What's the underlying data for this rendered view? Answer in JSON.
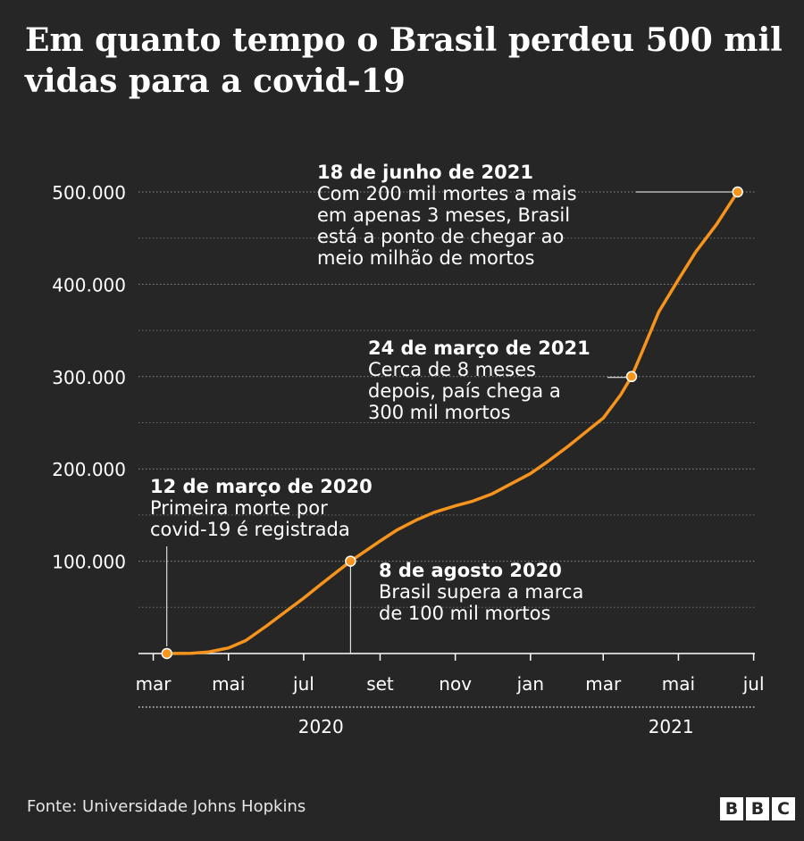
{
  "title": "Em quanto tempo o Brasil perdeu 500 mil vidas para a covid-19",
  "source": "Fonte: Universidade Johns Hopkins",
  "logo_letters": [
    "B",
    "B",
    "C"
  ],
  "colors": {
    "background": "#262626",
    "line": "#f7941d",
    "text": "#ffffff",
    "grid": "#8c8c8c"
  },
  "chart_data": {
    "type": "line",
    "title": "Em quanto tempo o Brasil perdeu 500 mil vidas para a covid-19",
    "xlabel": "",
    "ylabel": "",
    "ylim": [
      0,
      500000
    ],
    "xlim": [
      "2020-02-18",
      "2021-07-02"
    ],
    "y_ticks": [
      100000,
      200000,
      300000,
      400000,
      500000
    ],
    "y_tick_labels": [
      "100.000",
      "200.000",
      "300.000",
      "400.000",
      "500.000"
    ],
    "x_ticks": [
      {
        "date": "2020-03-01",
        "label": "mar"
      },
      {
        "date": "2020-05-01",
        "label": "mai"
      },
      {
        "date": "2020-07-01",
        "label": "jul"
      },
      {
        "date": "2020-09-01",
        "label": "set"
      },
      {
        "date": "2020-11-01",
        "label": "nov"
      },
      {
        "date": "2021-01-01",
        "label": "jan"
      },
      {
        "date": "2021-03-01",
        "label": "mar"
      },
      {
        "date": "2021-05-01",
        "label": "mai"
      },
      {
        "date": "2021-07-01",
        "label": "jul"
      }
    ],
    "years": [
      {
        "label": "2020",
        "center_date": "2020-07-15"
      },
      {
        "label": "2021",
        "center_date": "2021-04-25"
      }
    ],
    "grid": true,
    "series": [
      {
        "points": [
          [
            "2020-03-12",
            1
          ],
          [
            "2020-04-01",
            200
          ],
          [
            "2020-04-15",
            1700
          ],
          [
            "2020-05-01",
            6000
          ],
          [
            "2020-05-15",
            14000
          ],
          [
            "2020-06-01",
            30000
          ],
          [
            "2020-06-15",
            44000
          ],
          [
            "2020-07-01",
            60000
          ],
          [
            "2020-07-15",
            75000
          ],
          [
            "2020-08-08",
            100000
          ],
          [
            "2020-08-31",
            121000
          ],
          [
            "2020-09-15",
            134000
          ],
          [
            "2020-10-01",
            145000
          ],
          [
            "2020-10-15",
            153000
          ],
          [
            "2020-11-01",
            160000
          ],
          [
            "2020-11-15",
            165000
          ],
          [
            "2020-12-01",
            173000
          ],
          [
            "2020-12-15",
            183000
          ],
          [
            "2021-01-01",
            195000
          ],
          [
            "2021-01-15",
            208000
          ],
          [
            "2021-02-01",
            225000
          ],
          [
            "2021-02-15",
            240000
          ],
          [
            "2021-03-01",
            255000
          ],
          [
            "2021-03-15",
            280000
          ],
          [
            "2021-03-24",
            300000
          ],
          [
            "2021-04-01",
            325000
          ],
          [
            "2021-04-15",
            370000
          ],
          [
            "2021-05-01",
            405000
          ],
          [
            "2021-05-15",
            435000
          ],
          [
            "2021-06-01",
            465000
          ],
          [
            "2021-06-18",
            500000
          ]
        ]
      }
    ],
    "annotations": [
      {
        "date": "2020-03-12",
        "value": 1,
        "heading": "12 de março de 2020",
        "lines": [
          "Primeira morte por",
          "covid-19 é registrada"
        ]
      },
      {
        "date": "2020-08-08",
        "value": 100000,
        "heading": "8 de agosto 2020",
        "lines": [
          "Brasil supera a marca",
          "de 100 mil mortos"
        ]
      },
      {
        "date": "2021-03-24",
        "value": 300000,
        "heading": "24 de março de 2021",
        "lines": [
          "Cerca de 8 meses",
          "depois, país chega a",
          "300 mil mortos"
        ]
      },
      {
        "date": "2021-06-18",
        "value": 500000,
        "heading": "18 de junho de 2021",
        "lines": [
          "Com 200 mil mortes a mais",
          "em apenas 3 meses, Brasil",
          "está a ponto de chegar ao",
          "meio milhão de mortos"
        ]
      }
    ]
  }
}
